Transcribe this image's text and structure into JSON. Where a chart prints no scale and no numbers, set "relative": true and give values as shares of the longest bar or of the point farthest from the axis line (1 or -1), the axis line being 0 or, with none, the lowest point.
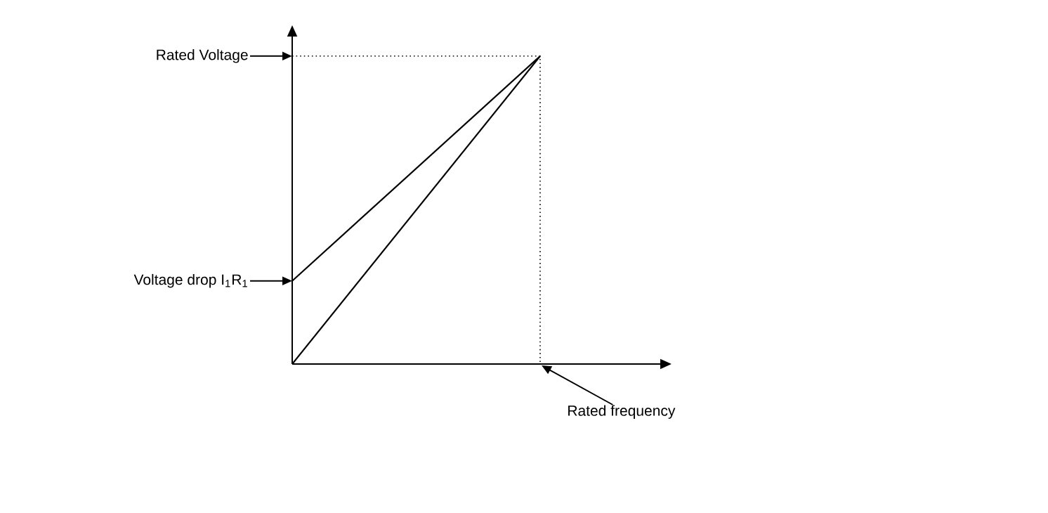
{
  "chart_data": {
    "type": "line",
    "relative": true,
    "categories": [
      null,
      null
    ],
    "series": [
      {
        "color": "#000000",
        "values": [
          0,
          1
        ]
      },
      {
        "color": "#000000",
        "values": [
          0.27,
          1
        ]
      }
    ],
    "annotations": [
      "Rated Voltage",
      "Voltage drop I$_{1}$R$_{1}$",
      "Rated frequency"
    ],
    "line_style": "solid"
  }
}
